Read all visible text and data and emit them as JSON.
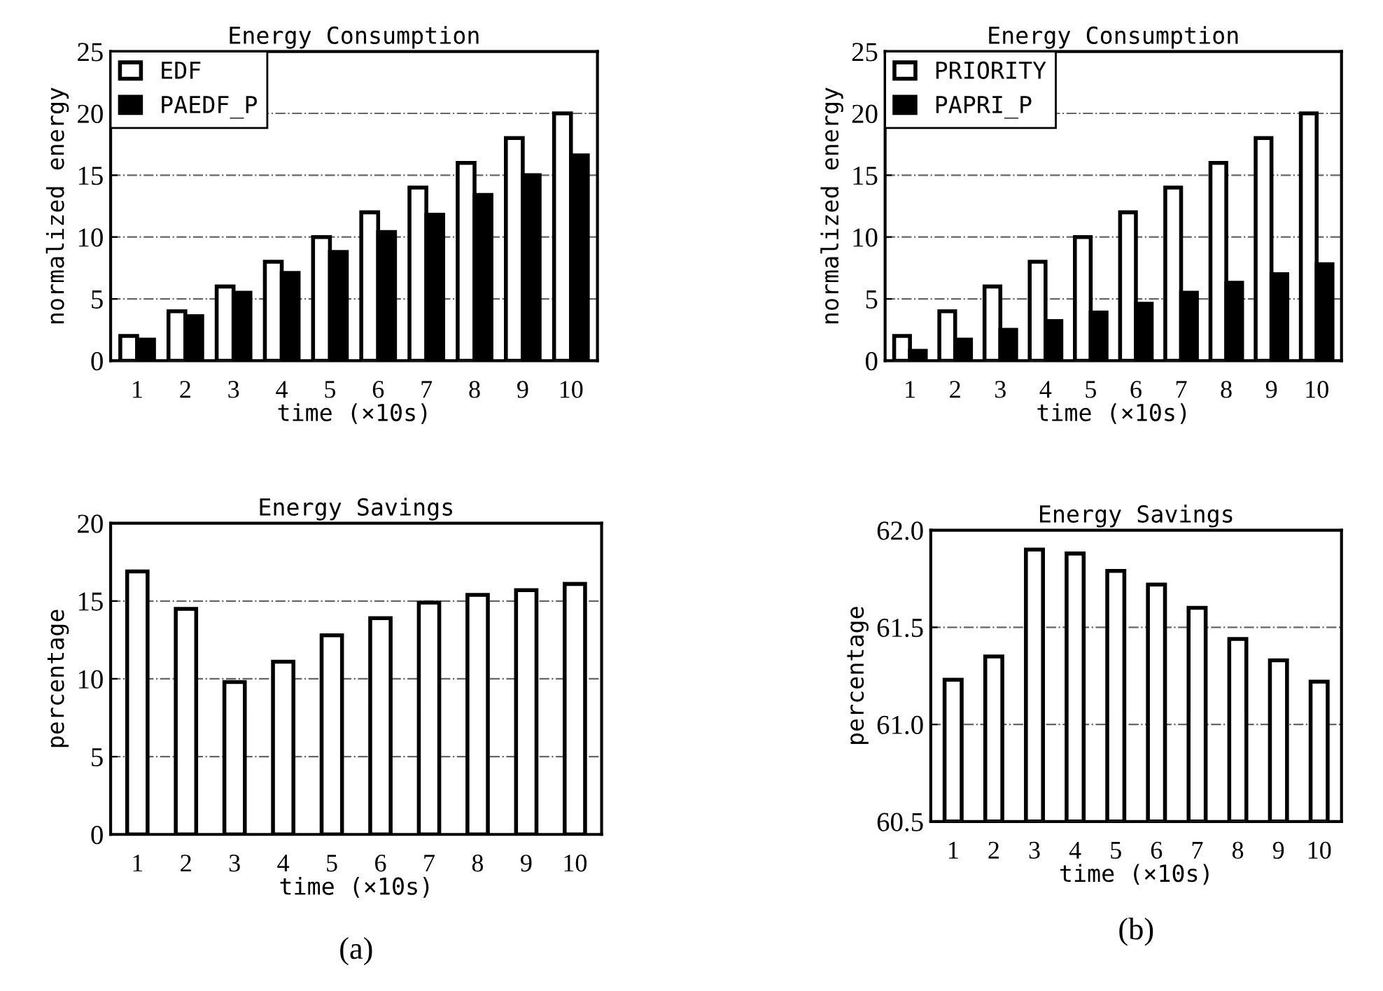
{
  "chart_data": [
    {
      "type": "bar",
      "title": "Energy Consumption",
      "xlabel": "time (×10s)",
      "ylabel": "normalized energy",
      "categories": [
        "1",
        "2",
        "3",
        "4",
        "5",
        "6",
        "7",
        "8",
        "9",
        "10"
      ],
      "series": [
        {
          "name": "EDF",
          "color": "#ffffff",
          "values": [
            2,
            4,
            6,
            8,
            10,
            12,
            14,
            16,
            18,
            20
          ]
        },
        {
          "name": "PAEDF_P",
          "color": "#000000",
          "values": [
            1.7,
            3.6,
            5.5,
            7.1,
            8.8,
            10.4,
            11.8,
            13.4,
            15.0,
            16.6
          ]
        }
      ],
      "ylim": [
        0,
        25
      ],
      "yticks": [
        0,
        5,
        10,
        15,
        20,
        25
      ],
      "grid": "y",
      "legend": "top left"
    },
    {
      "type": "bar",
      "title": "Energy Consumption",
      "xlabel": "time (×10s)",
      "ylabel": "normalized energy",
      "categories": [
        "1",
        "2",
        "3",
        "4",
        "5",
        "6",
        "7",
        "8",
        "9",
        "10"
      ],
      "series": [
        {
          "name": "PRIORITY",
          "color": "#ffffff",
          "values": [
            2,
            4,
            6,
            8,
            10,
            12,
            14,
            16,
            18,
            20
          ]
        },
        {
          "name": "PAPRI_P",
          "color": "#000000",
          "values": [
            0.8,
            1.7,
            2.5,
            3.2,
            3.9,
            4.6,
            5.5,
            6.3,
            7.0,
            7.8
          ]
        }
      ],
      "ylim": [
        0,
        25
      ],
      "yticks": [
        0,
        5,
        10,
        15,
        20,
        25
      ],
      "grid": "y",
      "legend": "top left"
    },
    {
      "type": "bar",
      "title": "Energy Savings",
      "xlabel": "time (×10s)",
      "ylabel": "percentage",
      "categories": [
        "1",
        "2",
        "3",
        "4",
        "5",
        "6",
        "7",
        "8",
        "9",
        "10"
      ],
      "series": [
        {
          "color": "#ffffff",
          "values": [
            16.9,
            14.5,
            9.8,
            11.1,
            12.8,
            13.9,
            14.9,
            15.4,
            15.7,
            16.1
          ]
        }
      ],
      "ylim": [
        0,
        20
      ],
      "yticks": [
        0,
        5,
        10,
        15,
        20
      ],
      "grid": "y",
      "legend": false,
      "annotations": [
        "(a)"
      ]
    },
    {
      "type": "bar",
      "title": "Energy Savings",
      "xlabel": "time (×10s)",
      "ylabel": "percentage",
      "categories": [
        "1",
        "2",
        "3",
        "4",
        "5",
        "6",
        "7",
        "8",
        "9",
        "10"
      ],
      "series": [
        {
          "color": "#ffffff",
          "values": [
            61.23,
            61.35,
            61.9,
            61.88,
            61.79,
            61.72,
            61.6,
            61.44,
            61.33,
            61.22
          ]
        }
      ],
      "ylim": [
        60.5,
        62.0
      ],
      "yticks": [
        60.5,
        {
          "value": 61,
          "label": "61.0"
        },
        61.5,
        {
          "value": 62,
          "label": "62.0"
        }
      ],
      "grid": "y",
      "legend": false,
      "annotations": [
        "(b)"
      ]
    }
  ]
}
